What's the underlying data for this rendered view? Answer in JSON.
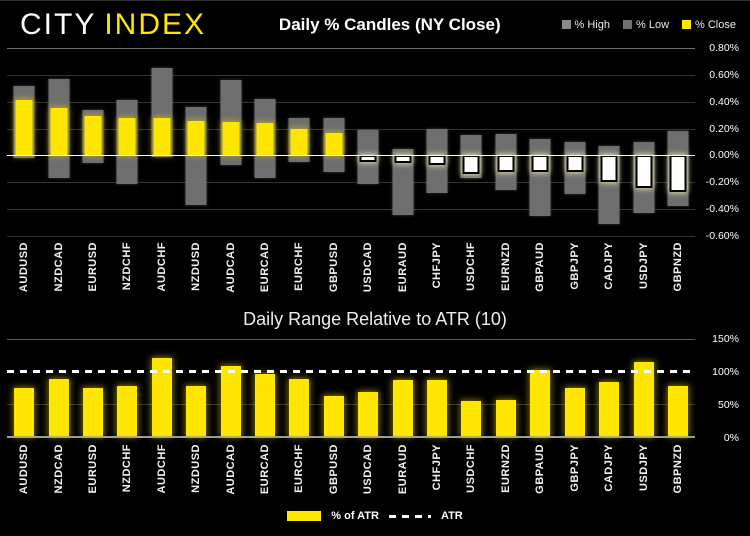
{
  "header": {
    "brand": {
      "part1": "CITY",
      "part2": "INDEX"
    },
    "legend": [
      {
        "label": "% High",
        "swatch_color": "#8a8a8a"
      },
      {
        "label": "% Low",
        "swatch_color": "#6f6f6f"
      },
      {
        "label": "% Close",
        "swatch_color": "#ffe600"
      }
    ]
  },
  "colors": {
    "background": "#000000",
    "brand_yellow": "#ffe600",
    "bar_gray": "#6e6e6e",
    "negative_close_fill": "#ffffff",
    "zero_line": "#fdfdfd"
  },
  "chart_data": [
    {
      "type": "bar",
      "subtype": "high-low-close-percent-candles",
      "title": "Daily % Candles (NY Close)",
      "legend_position": "top-right",
      "grid": true,
      "ylim": [
        -0.6,
        0.8
      ],
      "ytick_step": 0.2,
      "ytick_labels": [
        "0.80%",
        "0.60%",
        "0.40%",
        "0.20%",
        "0.00%",
        "-0.20%",
        "-0.40%",
        "-0.60%"
      ],
      "categories": [
        "AUDUSD",
        "NZDCAD",
        "EURUSD",
        "NZDCHF",
        "AUDCHF",
        "NZDUSD",
        "AUDCAD",
        "EURCAD",
        "EURCHF",
        "GBPUSD",
        "USDCAD",
        "EURAUD",
        "CHFJPY",
        "USDCHF",
        "EURNZD",
        "GBPAUD",
        "GBPJPY",
        "CADJPY",
        "USDJPY",
        "GBPNZD"
      ],
      "series": [
        {
          "name": "% High",
          "values": [
            0.52,
            0.57,
            0.34,
            0.41,
            0.65,
            0.36,
            0.56,
            0.42,
            0.28,
            0.28,
            0.19,
            0.05,
            0.2,
            0.15,
            0.16,
            0.12,
            0.1,
            0.07,
            0.1,
            0.18
          ]
        },
        {
          "name": "% Low",
          "values": [
            -0.02,
            -0.17,
            -0.06,
            -0.21,
            -0.01,
            -0.37,
            -0.07,
            -0.17,
            -0.05,
            -0.12,
            -0.21,
            -0.44,
            -0.28,
            -0.17,
            -0.26,
            -0.45,
            -0.29,
            -0.51,
            -0.43,
            -0.38
          ]
        },
        {
          "name": "% Close",
          "values": [
            0.41,
            0.35,
            0.29,
            0.28,
            0.28,
            0.26,
            0.25,
            0.24,
            0.2,
            0.17,
            -0.05,
            -0.06,
            -0.07,
            -0.14,
            -0.12,
            -0.12,
            -0.12,
            -0.2,
            -0.24,
            -0.27
          ]
        }
      ]
    },
    {
      "type": "bar",
      "title": "Daily Range Relative to ATR (10)",
      "legend_position": "bottom",
      "grid": true,
      "ylim": [
        0,
        150
      ],
      "yticks": [
        150,
        100,
        50,
        0
      ],
      "ytick_labels": [
        "150%",
        "100%",
        "50%",
        "0%"
      ],
      "reference_line": {
        "label": "ATR",
        "value": 100,
        "style": "dashed"
      },
      "categories": [
        "AUDUSD",
        "NZDCAD",
        "EURUSD",
        "NZDCHF",
        "AUDCHF",
        "NZDUSD",
        "AUDCAD",
        "EURCAD",
        "EURCHF",
        "GBPUSD",
        "USDCAD",
        "EURAUD",
        "CHFJPY",
        "USDCHF",
        "EURNZD",
        "GBPAUD",
        "GBPJPY",
        "CADJPY",
        "USDJPY",
        "GBPNZD"
      ],
      "values": [
        75,
        88,
        75,
        78,
        120,
        77,
        108,
        96,
        88,
        62,
        68,
        87,
        86,
        54,
        56,
        102,
        75,
        84,
        114,
        78
      ],
      "legend": [
        {
          "label": "% of ATR",
          "swatch": "yellow-bar"
        },
        {
          "label": "ATR",
          "swatch": "white-dashed-line"
        }
      ]
    }
  ],
  "footer_legend": {
    "bar_label": "% of ATR",
    "line_label": "ATR"
  }
}
